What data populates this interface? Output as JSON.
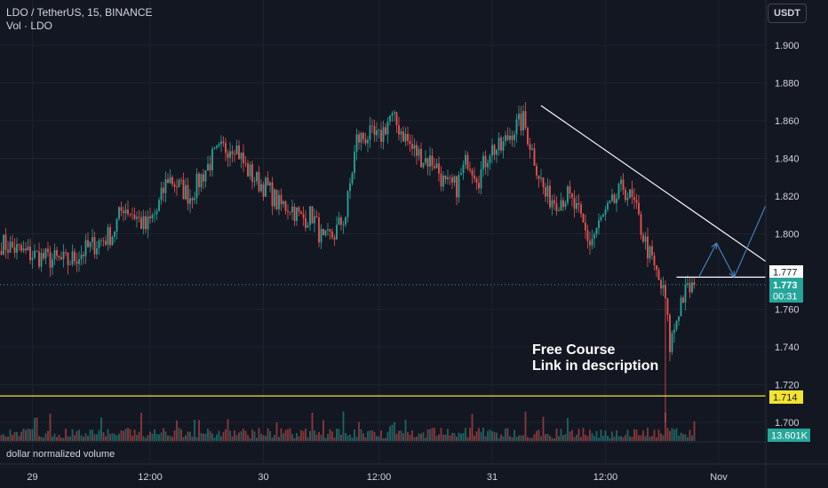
{
  "header": {
    "symbol_line": "LDO / TetherUS, 15, BINANCE",
    "indicator_line": "Vol · LDO",
    "currency_button": "USDT"
  },
  "annotation": {
    "line1": "Free Course",
    "line2": "Link in description"
  },
  "volume_pane": {
    "label": "dollar normalized volume",
    "last_value_label": "13.601K"
  },
  "price_labels": {
    "resistance": "1.777",
    "current": "1.773",
    "countdown": "00:31",
    "support": "1.714"
  },
  "colors": {
    "background": "#131722",
    "up": "#26a69a",
    "down": "#ef5350",
    "support_line": "#f5e32f",
    "trendline": "#ffffff",
    "projection": "#4a8fd1",
    "last_price": "#26a69a"
  },
  "chart_data": {
    "type": "candlestick",
    "title": "LDO / TetherUS, 15, BINANCE",
    "ylim": [
      1.695,
      1.91
    ],
    "y_ticks": [
      1.9,
      1.88,
      1.86,
      1.84,
      1.82,
      1.8,
      1.76,
      1.74,
      1.72,
      1.7
    ],
    "y_tick_labels": [
      "1.900",
      "1.880",
      "1.860",
      "1.840",
      "1.820",
      "1.800",
      "1.760",
      "1.740",
      "1.720",
      "1.700"
    ],
    "x_tick_labels": [
      "29",
      "12:00",
      "30",
      "12:00",
      "31",
      "12:00",
      "Nov"
    ],
    "anchors": [
      {
        "i": 0,
        "y": 1.795
      },
      {
        "i": 10,
        "y": 1.79
      },
      {
        "i": 20,
        "y": 1.787
      },
      {
        "i": 30,
        "y": 1.785
      },
      {
        "i": 40,
        "y": 1.793
      },
      {
        "i": 50,
        "y": 1.8
      },
      {
        "i": 55,
        "y": 1.815
      },
      {
        "i": 60,
        "y": 1.81
      },
      {
        "i": 65,
        "y": 1.803
      },
      {
        "i": 70,
        "y": 1.812
      },
      {
        "i": 75,
        "y": 1.83
      },
      {
        "i": 80,
        "y": 1.825
      },
      {
        "i": 85,
        "y": 1.82
      },
      {
        "i": 90,
        "y": 1.83
      },
      {
        "i": 95,
        "y": 1.84
      },
      {
        "i": 100,
        "y": 1.845
      },
      {
        "i": 105,
        "y": 1.848
      },
      {
        "i": 110,
        "y": 1.835
      },
      {
        "i": 115,
        "y": 1.828
      },
      {
        "i": 120,
        "y": 1.824
      },
      {
        "i": 125,
        "y": 1.815
      },
      {
        "i": 130,
        "y": 1.815
      },
      {
        "i": 135,
        "y": 1.808
      },
      {
        "i": 140,
        "y": 1.81
      },
      {
        "i": 145,
        "y": 1.795
      },
      {
        "i": 150,
        "y": 1.8
      },
      {
        "i": 155,
        "y": 1.81
      },
      {
        "i": 160,
        "y": 1.85
      },
      {
        "i": 165,
        "y": 1.852
      },
      {
        "i": 170,
        "y": 1.85
      },
      {
        "i": 175,
        "y": 1.862
      },
      {
        "i": 180,
        "y": 1.855
      },
      {
        "i": 185,
        "y": 1.845
      },
      {
        "i": 190,
        "y": 1.84
      },
      {
        "i": 195,
        "y": 1.838
      },
      {
        "i": 200,
        "y": 1.825
      },
      {
        "i": 205,
        "y": 1.825
      },
      {
        "i": 210,
        "y": 1.84
      },
      {
        "i": 215,
        "y": 1.83
      },
      {
        "i": 220,
        "y": 1.845
      },
      {
        "i": 225,
        "y": 1.845
      },
      {
        "i": 230,
        "y": 1.855
      },
      {
        "i": 235,
        "y": 1.86
      },
      {
        "i": 240,
        "y": 1.84
      },
      {
        "i": 245,
        "y": 1.82
      },
      {
        "i": 250,
        "y": 1.818
      },
      {
        "i": 255,
        "y": 1.82
      },
      {
        "i": 260,
        "y": 1.81
      },
      {
        "i": 265,
        "y": 1.795
      },
      {
        "i": 270,
        "y": 1.807
      },
      {
        "i": 275,
        "y": 1.815
      },
      {
        "i": 280,
        "y": 1.825
      },
      {
        "i": 285,
        "y": 1.815
      },
      {
        "i": 290,
        "y": 1.795
      },
      {
        "i": 293,
        "y": 1.785
      },
      {
        "i": 296,
        "y": 1.775
      },
      {
        "i": 299,
        "y": 1.765
      },
      {
        "i": 301,
        "y": 1.74
      },
      {
        "i": 303,
        "y": 1.75
      },
      {
        "i": 306,
        "y": 1.765
      },
      {
        "i": 309,
        "y": 1.77
      },
      {
        "i": 312,
        "y": 1.773
      }
    ],
    "trendline": {
      "from": {
        "i": 243,
        "y": 1.868
      },
      "to": {
        "i": 355,
        "y": 1.7765
      }
    },
    "resistance_line": {
      "y": 1.777,
      "from_i": 304,
      "to_i": 355
    },
    "support_line": {
      "y": 1.714
    },
    "last_price": 1.773,
    "projection": [
      {
        "i": 314,
        "y": 1.777
      },
      {
        "i": 322,
        "y": 1.795
      },
      {
        "i": 330,
        "y": 1.777
      },
      {
        "i": 346,
        "y": 1.82
      }
    ],
    "x_tick_positions": [
      {
        "label": "29",
        "i": 14
      },
      {
        "label": "12:00",
        "i": 67
      },
      {
        "label": "30",
        "i": 118
      },
      {
        "label": "12:00",
        "i": 170
      },
      {
        "label": "31",
        "i": 221
      },
      {
        "label": "12:00",
        "i": 272
      },
      {
        "label": "Nov",
        "i": 323
      }
    ]
  }
}
